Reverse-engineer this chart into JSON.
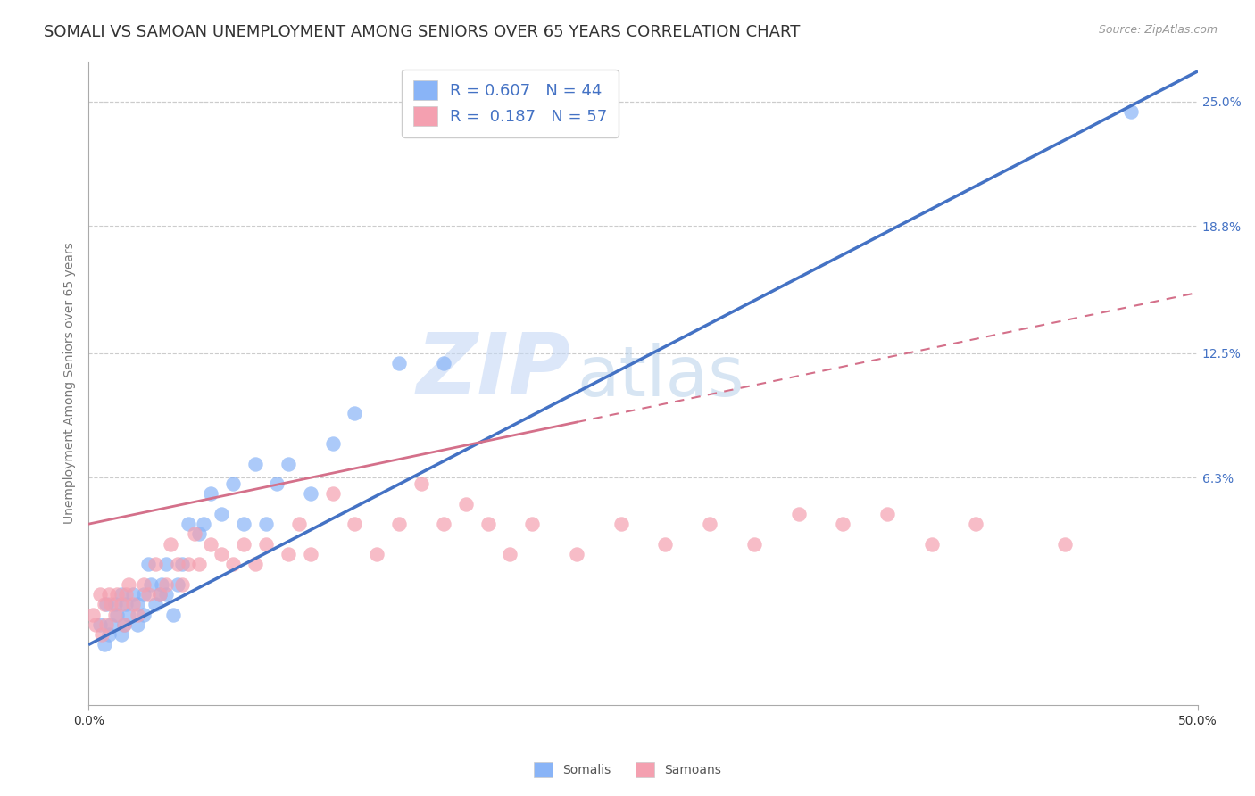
{
  "title": "SOMALI VS SAMOAN UNEMPLOYMENT AMONG SENIORS OVER 65 YEARS CORRELATION CHART",
  "source": "Source: ZipAtlas.com",
  "ylabel": "Unemployment Among Seniors over 65 years",
  "xlim": [
    0,
    0.5
  ],
  "ylim": [
    -0.05,
    0.27
  ],
  "yticks_right": [
    0.063,
    0.125,
    0.188,
    0.25
  ],
  "yticklabels_right": [
    "6.3%",
    "12.5%",
    "18.8%",
    "25.0%"
  ],
  "somali_color": "#89b4f7",
  "samoan_color": "#f4a0b0",
  "somali_line_color": "#4472c4",
  "samoan_line_color": "#d4708a",
  "R_somali": 0.607,
  "N_somali": 44,
  "R_samoan": 0.187,
  "N_samoan": 57,
  "watermark_zip": "ZIP",
  "watermark_atlas": "atlas",
  "somali_x": [
    0.005,
    0.007,
    0.008,
    0.009,
    0.01,
    0.012,
    0.013,
    0.015,
    0.015,
    0.016,
    0.017,
    0.018,
    0.02,
    0.022,
    0.022,
    0.025,
    0.025,
    0.027,
    0.028,
    0.03,
    0.032,
    0.033,
    0.035,
    0.035,
    0.038,
    0.04,
    0.042,
    0.045,
    0.05,
    0.052,
    0.055,
    0.06,
    0.065,
    0.07,
    0.075,
    0.08,
    0.085,
    0.09,
    0.1,
    0.11,
    0.12,
    0.14,
    0.16,
    0.47
  ],
  "somali_y": [
    -0.01,
    -0.02,
    0.0,
    -0.015,
    -0.01,
    0.0,
    -0.005,
    0.005,
    -0.015,
    -0.01,
    0.0,
    -0.005,
    0.005,
    0.0,
    -0.01,
    0.005,
    -0.005,
    0.02,
    0.01,
    0.0,
    0.005,
    0.01,
    0.005,
    0.02,
    -0.005,
    0.01,
    0.02,
    0.04,
    0.035,
    0.04,
    0.055,
    0.045,
    0.06,
    0.04,
    0.07,
    0.04,
    0.06,
    0.07,
    0.055,
    0.08,
    0.095,
    0.12,
    0.12,
    0.245
  ],
  "samoan_x": [
    0.002,
    0.003,
    0.005,
    0.006,
    0.007,
    0.008,
    0.009,
    0.01,
    0.012,
    0.013,
    0.015,
    0.016,
    0.017,
    0.018,
    0.02,
    0.022,
    0.025,
    0.027,
    0.03,
    0.032,
    0.035,
    0.037,
    0.04,
    0.042,
    0.045,
    0.048,
    0.05,
    0.055,
    0.06,
    0.065,
    0.07,
    0.075,
    0.08,
    0.09,
    0.095,
    0.1,
    0.11,
    0.12,
    0.13,
    0.14,
    0.15,
    0.16,
    0.17,
    0.18,
    0.19,
    0.2,
    0.22,
    0.24,
    0.26,
    0.28,
    0.3,
    0.32,
    0.34,
    0.36,
    0.38,
    0.4,
    0.44
  ],
  "samoan_y": [
    -0.005,
    -0.01,
    0.005,
    -0.015,
    0.0,
    -0.01,
    0.005,
    0.0,
    -0.005,
    0.005,
    0.0,
    -0.01,
    0.005,
    0.01,
    0.0,
    -0.005,
    0.01,
    0.005,
    0.02,
    0.005,
    0.01,
    0.03,
    0.02,
    0.01,
    0.02,
    0.035,
    0.02,
    0.03,
    0.025,
    0.02,
    0.03,
    0.02,
    0.03,
    0.025,
    0.04,
    0.025,
    0.055,
    0.04,
    0.025,
    0.04,
    0.06,
    0.04,
    0.05,
    0.04,
    0.025,
    0.04,
    0.025,
    0.04,
    0.03,
    0.04,
    0.03,
    0.045,
    0.04,
    0.045,
    0.03,
    0.04,
    0.03
  ],
  "somali_line_x0": 0.0,
  "somali_line_y0": -0.02,
  "somali_line_x1": 0.5,
  "somali_line_y1": 0.265,
  "samoan_line_x0": 0.0,
  "samoan_line_y0": 0.04,
  "samoan_line_x1": 0.5,
  "samoan_line_y1": 0.155,
  "background_color": "#ffffff",
  "grid_color": "#cccccc",
  "title_fontsize": 13,
  "label_fontsize": 10,
  "tick_fontsize": 10,
  "legend_fontsize": 13
}
